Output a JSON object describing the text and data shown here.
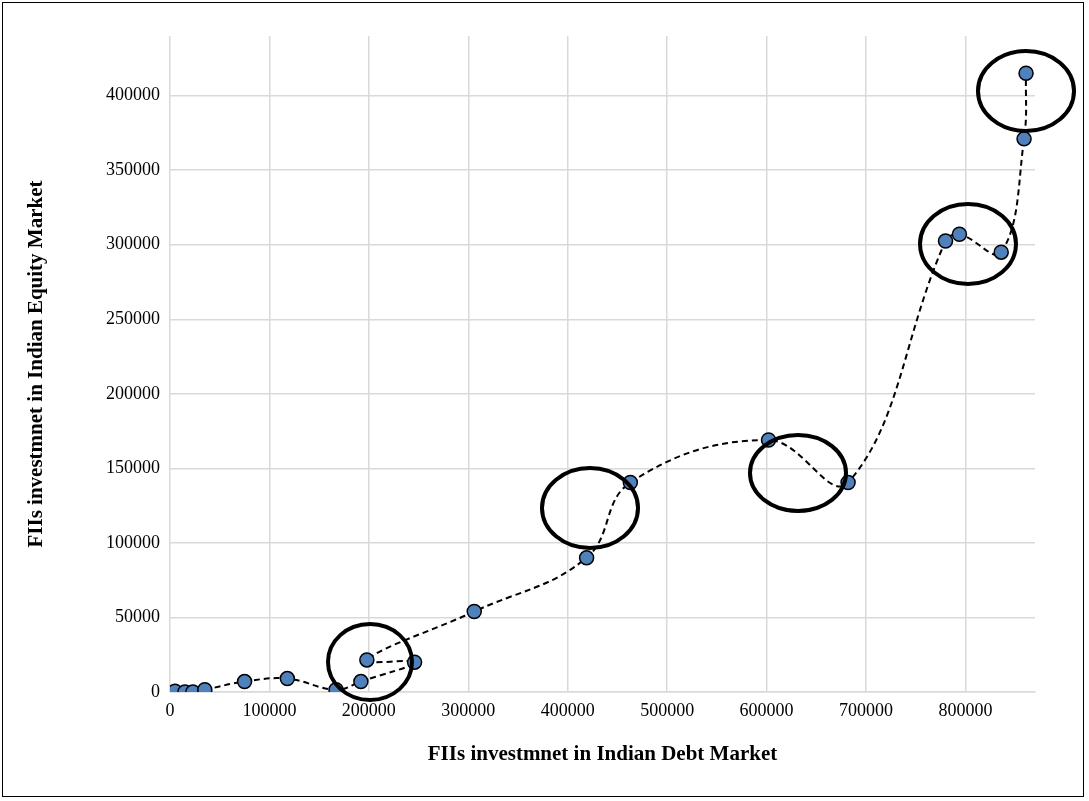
{
  "chart_data": {
    "type": "line",
    "xlabel": "FIIs investmnet in Indian Debt Market",
    "ylabel": "FIIs investmnet in Indian Equity Market",
    "series": [
      {
        "color": "#4f81bd",
        "x": [
          5000,
          15000,
          23000,
          35000,
          75000,
          118000,
          167000,
          192000,
          246000,
          198000,
          306000,
          419000,
          463000,
          602000,
          682000,
          780000,
          794000,
          836000,
          859000,
          861000
        ],
        "values": [
          500,
          0,
          0,
          1500,
          7000,
          9000,
          1500,
          7000,
          20000,
          21500,
          54000,
          90000,
          140500,
          169000,
          140500,
          302500,
          307000,
          295000,
          371000,
          415000
        ]
      }
    ],
    "xlim": [
      0,
      870000
    ],
    "xticks": [
      0,
      100000,
      200000,
      300000,
      400000,
      500000,
      600000,
      700000,
      800000
    ],
    "ylim": [
      0,
      440000
    ],
    "yticks": [
      0,
      50000,
      100000,
      150000,
      200000,
      250000,
      300000,
      350000,
      400000
    ],
    "grid": true,
    "legend": false,
    "marker": "circle",
    "line_style": "dashed"
  }
}
